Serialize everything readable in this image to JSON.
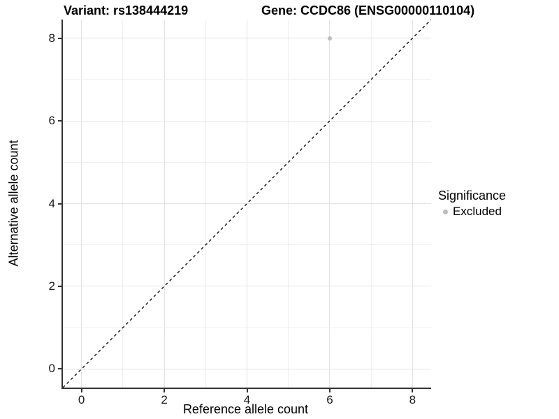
{
  "chart_data": {
    "type": "scatter",
    "title_left": "Variant: rs138444219",
    "title_right": "Gene: CCDC86 (ENSG00000110104)",
    "xlabel": "Reference allele count",
    "ylabel": "Alternative allele count",
    "xlim": [
      -0.45,
      8.45
    ],
    "ylim": [
      -0.45,
      8.45
    ],
    "xticks": [
      0,
      2,
      4,
      6,
      8
    ],
    "yticks": [
      0,
      2,
      4,
      6,
      8
    ],
    "grid": {
      "show": true,
      "interval": 1,
      "minor_at_odd_values": true
    },
    "series": [
      {
        "name": "Excluded",
        "color": "#bcbcbc",
        "points": [
          {
            "x": 6,
            "y": 8
          }
        ]
      }
    ],
    "reference_line": {
      "type": "identity y=x",
      "style": "dashed",
      "color": "#111111"
    },
    "legend": {
      "title": "Significance",
      "position": "right",
      "items": [
        {
          "label": "Excluded",
          "color": "#bcbcbc"
        }
      ]
    }
  },
  "colors": {
    "background": "#ffffff",
    "axis_line": "#333333",
    "grid_major": "#e3e3e3",
    "grid_minor": "#efefef",
    "text": "#000000"
  }
}
